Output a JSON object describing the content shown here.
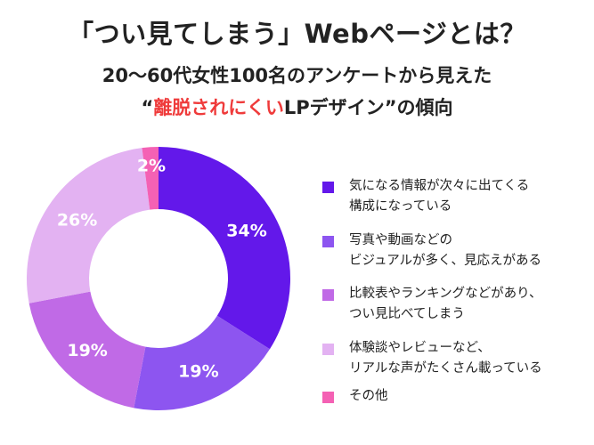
{
  "title": "「つい見てしまう」Webページとは？",
  "subtitle_line1": "20〜60代女性100名のアンケートから見えた",
  "subtitle_line2": {
    "open_quote": "“",
    "highlight": "離脱されにくい",
    "rest": "LPデザイン",
    "close": "”の傾向"
  },
  "colors": {
    "highlight": "#ef3b3b"
  },
  "chart_data": {
    "type": "pie",
    "donut": true,
    "unit": "%",
    "legend_position": "right",
    "series": [
      {
        "label_lines": [
          "気になる情報が次々に出てくる",
          "構成になっている"
        ],
        "value": 34,
        "value_label": "34%",
        "color": "#6318ea"
      },
      {
        "label_lines": [
          "写真や動画などの",
          "ビジュアルが多く、見応えがある"
        ],
        "value": 19,
        "value_label": "19%",
        "color": "#8d55f0"
      },
      {
        "label_lines": [
          "比較表やランキングなどがあり、",
          "つい見比べてしまう"
        ],
        "value": 19,
        "value_label": "19%",
        "color": "#c06ae6"
      },
      {
        "label_lines": [
          "体験談やレビューなど、",
          "リアルな声がたくさん載っている"
        ],
        "value": 26,
        "value_label": "26%",
        "color": "#e3b2f2"
      },
      {
        "label_lines": [
          "その他"
        ],
        "value": 2,
        "value_label": "2%",
        "color": "#f461b4"
      }
    ]
  }
}
